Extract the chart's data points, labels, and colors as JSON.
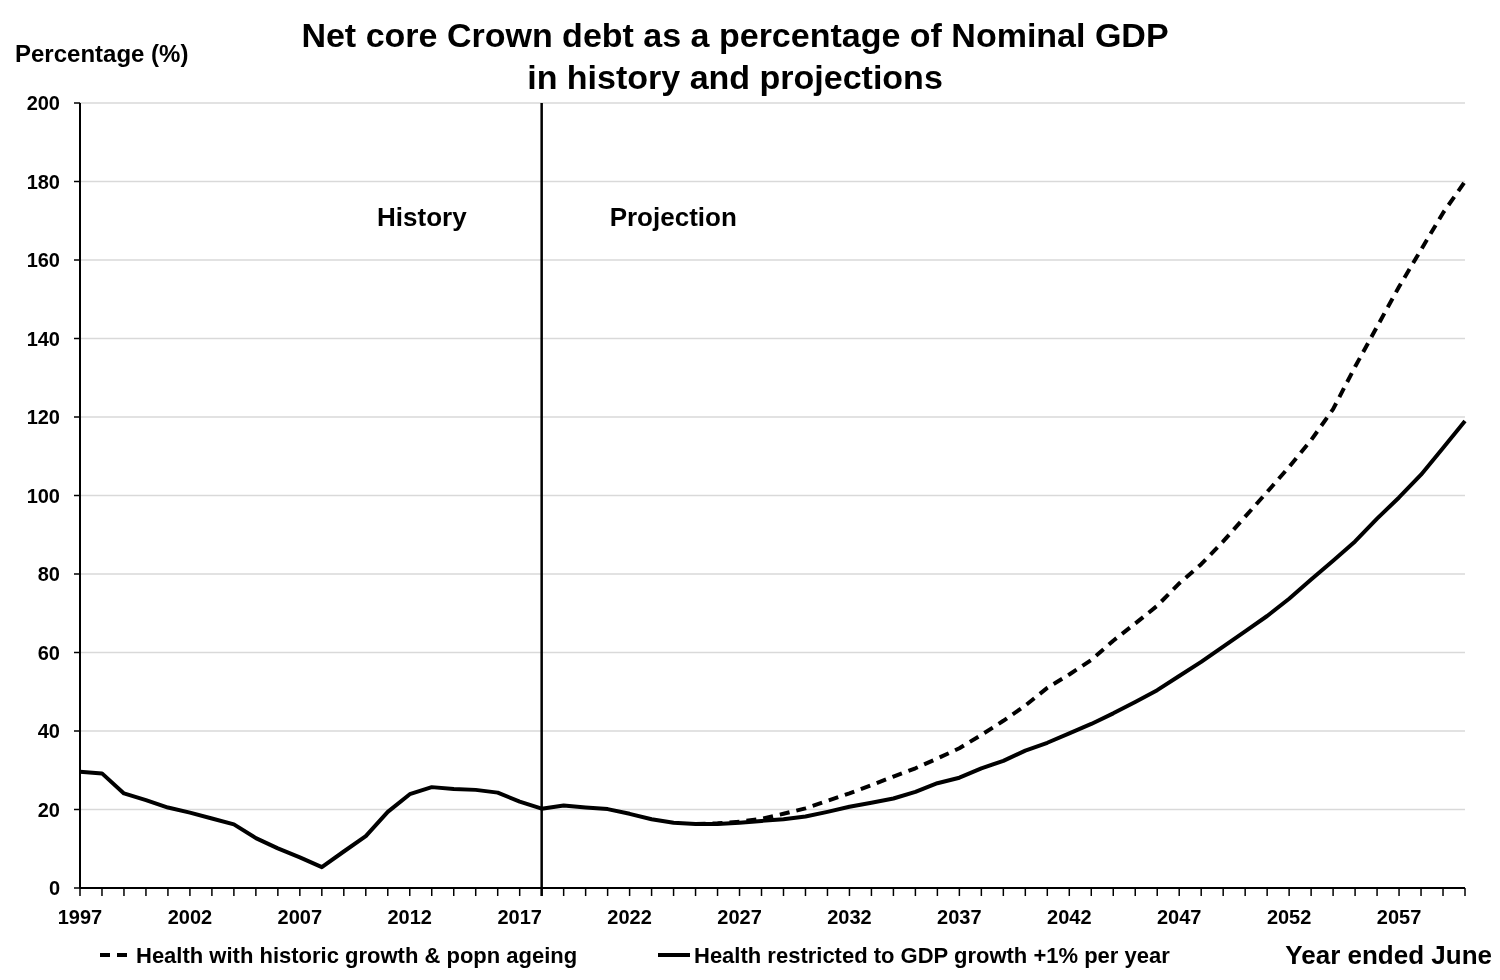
{
  "chart_data": {
    "type": "line",
    "title": "Net core Crown debt as a percentage of Nominal GDP\nin history and projections",
    "ylabel": "Percentage (%)",
    "xlabel": "Year ended June",
    "annotations": [
      "History",
      "Projection"
    ],
    "x": [
      1997,
      1998,
      1999,
      2000,
      2001,
      2002,
      2003,
      2004,
      2005,
      2006,
      2007,
      2008,
      2009,
      2010,
      2011,
      2012,
      2013,
      2014,
      2015,
      2016,
      2017,
      2018,
      2019,
      2020,
      2021,
      2022,
      2023,
      2024,
      2025,
      2026,
      2027,
      2028,
      2029,
      2030,
      2031,
      2032,
      2033,
      2034,
      2035,
      2036,
      2037,
      2038,
      2039,
      2040,
      2041,
      2042,
      2043,
      2044,
      2045,
      2046,
      2047,
      2048,
      2049,
      2050,
      2051,
      2052,
      2053,
      2054,
      2055,
      2056,
      2057,
      2058,
      2059,
      2060
    ],
    "series": [
      {
        "name": "Health with historic growth & popn ageing",
        "color": "#000000",
        "line_style": "dashed",
        "values": [
          null,
          null,
          null,
          null,
          null,
          null,
          null,
          null,
          null,
          null,
          null,
          null,
          null,
          null,
          null,
          null,
          null,
          null,
          null,
          null,
          null,
          null,
          null,
          null,
          null,
          null,
          null,
          null,
          16.3,
          16.5,
          16.9,
          17.6,
          18.9,
          20.3,
          22.2,
          24.1,
          26.2,
          28.4,
          30.5,
          33.0,
          35.6,
          39.0,
          42.6,
          46.5,
          51.0,
          54.4,
          58.1,
          63.0,
          67.4,
          71.9,
          77.6,
          82.5,
          88.3,
          94.6,
          100.9,
          107.3,
          114.1,
          122,
          132.8,
          143.0,
          153.2,
          162.6,
          172,
          180
        ]
      },
      {
        "name": "Health restricted to GDP growth +1% per year",
        "color": "#000000",
        "line_style": "solid",
        "values": [
          29.6,
          29.2,
          24.1,
          22.4,
          20.5,
          19.2,
          17.7,
          16.2,
          12.7,
          10.1,
          7.8,
          5.3,
          9.3,
          13.2,
          19.4,
          23.9,
          25.7,
          25.2,
          25.0,
          24.3,
          22.0,
          20.2,
          21.0,
          20.5,
          20.1,
          18.9,
          17.5,
          16.6,
          16.3,
          16.3,
          16.6,
          17.1,
          17.5,
          18.2,
          19.4,
          20.7,
          21.7,
          22.8,
          24.5,
          26.7,
          28.1,
          30.5,
          32.4,
          35.0,
          37.0,
          39.4,
          41.8,
          44.5,
          47.4,
          50.4,
          54.0,
          57.6,
          61.5,
          65.4,
          69.3,
          73.7,
          78.6,
          83.4,
          88.3,
          94.1,
          99.5,
          105.3,
          112.1,
          119
        ]
      }
    ],
    "xlim": [
      1997,
      2060
    ],
    "xticks": [
      1997,
      {
        "value": 1998,
        "label": null
      },
      {
        "value": 1999,
        "label": null
      },
      {
        "value": 2000,
        "label": null
      },
      {
        "value": 2001,
        "label": null
      },
      2002,
      {
        "value": 2003,
        "label": null
      },
      {
        "value": 2004,
        "label": null
      },
      {
        "value": 2005,
        "label": null
      },
      {
        "value": 2006,
        "label": null
      },
      2007,
      {
        "value": 2008,
        "label": null
      },
      {
        "value": 2009,
        "label": null
      },
      {
        "value": 2010,
        "label": null
      },
      {
        "value": 2011,
        "label": null
      },
      2012,
      {
        "value": 2013,
        "label": null
      },
      {
        "value": 2014,
        "label": null
      },
      {
        "value": 2015,
        "label": null
      },
      {
        "value": 2016,
        "label": null
      },
      2017,
      {
        "value": 2018,
        "label": null
      },
      {
        "value": 2019,
        "label": null
      },
      {
        "value": 2020,
        "label": null
      },
      {
        "value": 2021,
        "label": null
      },
      2022,
      {
        "value": 2023,
        "label": null
      },
      {
        "value": 2024,
        "label": null
      },
      {
        "value": 2025,
        "label": null
      },
      {
        "value": 2026,
        "label": null
      },
      2027,
      {
        "value": 2028,
        "label": null
      },
      {
        "value": 2029,
        "label": null
      },
      {
        "value": 2030,
        "label": null
      },
      {
        "value": 2031,
        "label": null
      },
      2032,
      {
        "value": 2033,
        "label": null
      },
      {
        "value": 2034,
        "label": null
      },
      {
        "value": 2035,
        "label": null
      },
      {
        "value": 2036,
        "label": null
      },
      2037,
      {
        "value": 2038,
        "label": null
      },
      {
        "value": 2039,
        "label": null
      },
      {
        "value": 2040,
        "label": null
      },
      {
        "value": 2041,
        "label": null
      },
      2042,
      {
        "value": 2043,
        "label": null
      },
      {
        "value": 2044,
        "label": null
      },
      {
        "value": 2045,
        "label": null
      },
      {
        "value": 2046,
        "label": null
      },
      2047,
      {
        "value": 2048,
        "label": null
      },
      {
        "value": 2049,
        "label": null
      },
      {
        "value": 2050,
        "label": null
      },
      {
        "value": 2051,
        "label": null
      },
      2052,
      {
        "value": 2053,
        "label": null
      },
      {
        "value": 2054,
        "label": null
      },
      {
        "value": 2055,
        "label": null
      },
      {
        "value": 2056,
        "label": null
      },
      2057,
      {
        "value": 2058,
        "label": null
      },
      {
        "value": 2059,
        "label": null
      },
      {
        "value": 2060,
        "label": null
      }
    ],
    "ylim": [
      0,
      200
    ],
    "yticks": [
      0,
      20,
      40,
      60,
      80,
      100,
      120,
      140,
      160,
      180,
      200
    ],
    "ref_lines": [
      {
        "axis": "x",
        "value": 2018,
        "color": "#000000"
      }
    ],
    "grid": "y",
    "legend": "bottom",
    "marker": "none"
  }
}
